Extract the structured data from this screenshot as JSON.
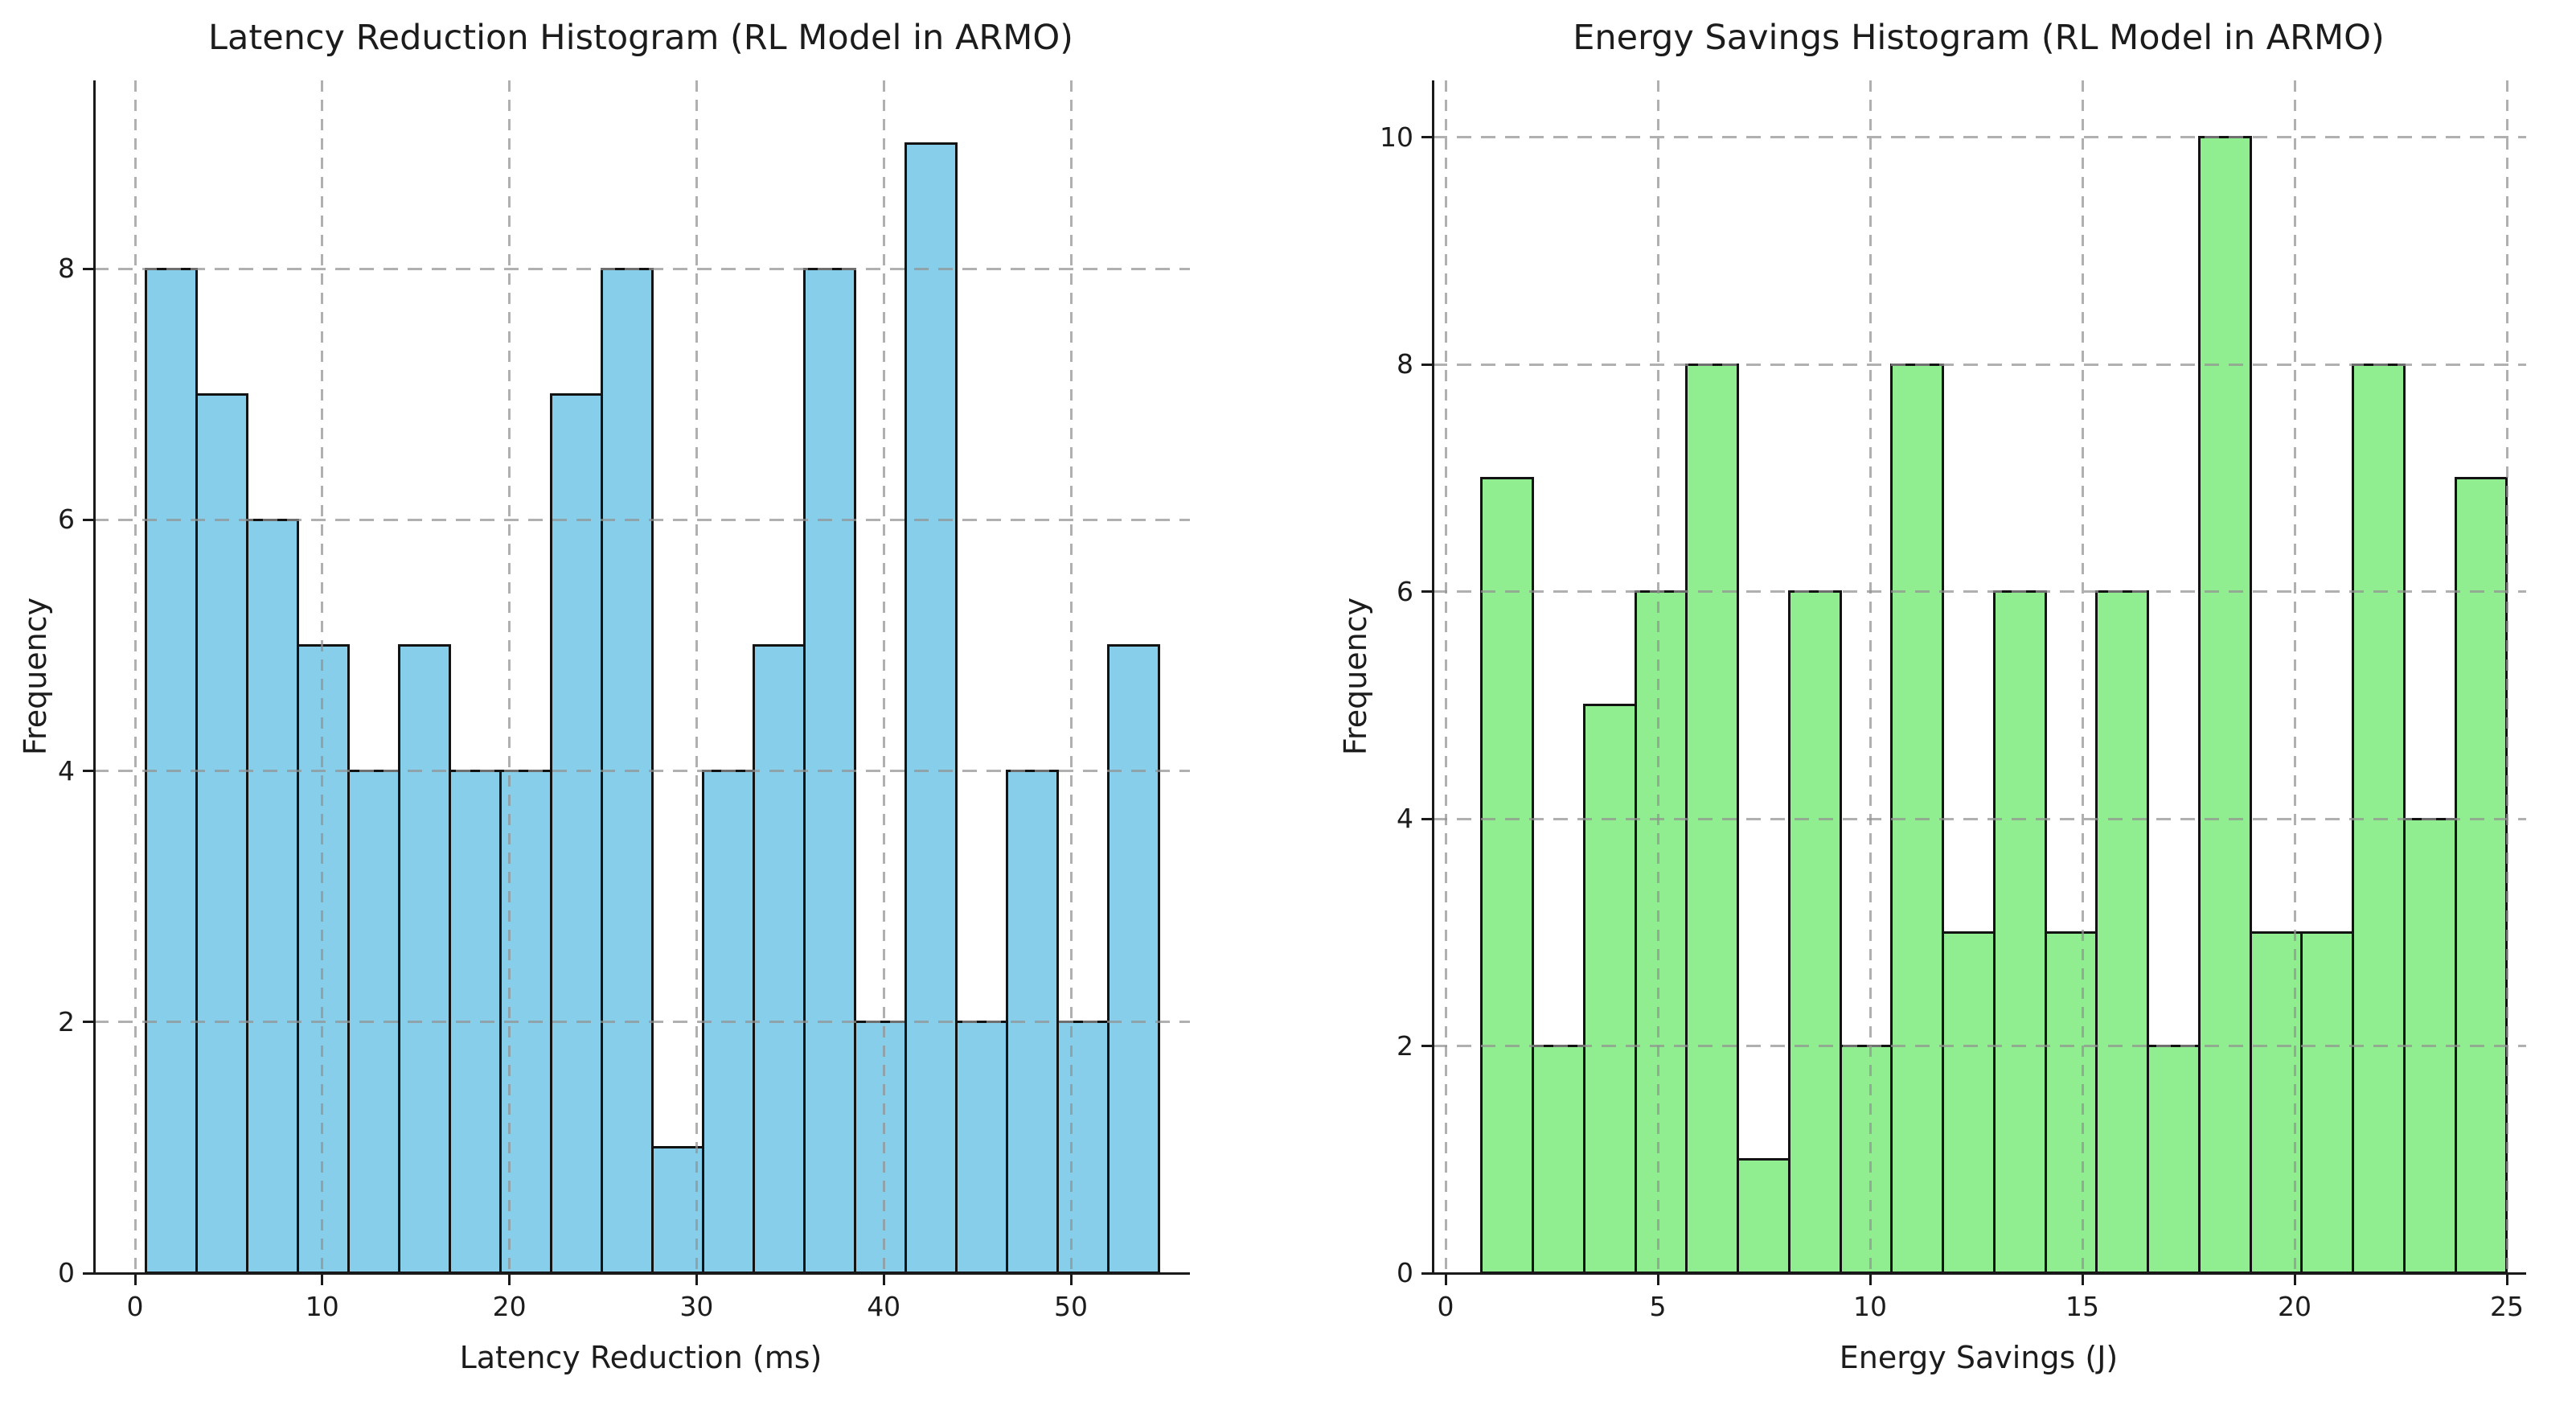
{
  "figure": {
    "background_color": "#ffffff",
    "text_color": "#1c1c1c",
    "grid_style": "dashed light-gray gridlines at every tick, drawn over the bars",
    "spines": "left and bottom only, dark"
  },
  "chart_data": [
    {
      "type": "bar",
      "subtype": "histogram",
      "title": "Latency Reduction Histogram (RL Model in ARMO)",
      "xlabel": "Latency Reduction (ms)",
      "ylabel": "Frequency",
      "bar_color": "#87CEEB",
      "bar_edge_color": "#131313",
      "bin_start": 0.6,
      "bin_width": 2.705,
      "bin_count": 20,
      "frequencies": [
        8,
        7,
        6,
        5,
        4,
        5,
        4,
        4,
        7,
        8,
        1,
        4,
        5,
        8,
        2,
        9,
        2,
        4,
        2,
        5
      ],
      "x_ticks": [
        0,
        10,
        20,
        30,
        40,
        50
      ],
      "y_ticks": [
        0,
        2,
        4,
        6,
        8
      ],
      "xlim": [
        -2.2,
        56.3
      ],
      "ylim": [
        0,
        9.5
      ],
      "legend": "none"
    },
    {
      "type": "bar",
      "subtype": "histogram",
      "title": "Energy Savings Histogram (RL Model in ARMO)",
      "xlabel": "Energy Savings (J)",
      "ylabel": "Frequency",
      "bar_color": "#90EE90",
      "bar_edge_color": "#131313",
      "bin_start": 0.85,
      "bin_width": 1.2075,
      "bin_count": 20,
      "frequencies": [
        7,
        2,
        5,
        6,
        8,
        1,
        6,
        2,
        8,
        3,
        6,
        3,
        6,
        2,
        10,
        3,
        3,
        8,
        4,
        7
      ],
      "x_ticks": [
        0,
        5,
        10,
        15,
        20,
        25
      ],
      "y_ticks": [
        0,
        2,
        4,
        6,
        8,
        10
      ],
      "xlim": [
        -0.3,
        25.5
      ],
      "ylim": [
        0,
        10.5
      ],
      "legend": "none"
    }
  ]
}
